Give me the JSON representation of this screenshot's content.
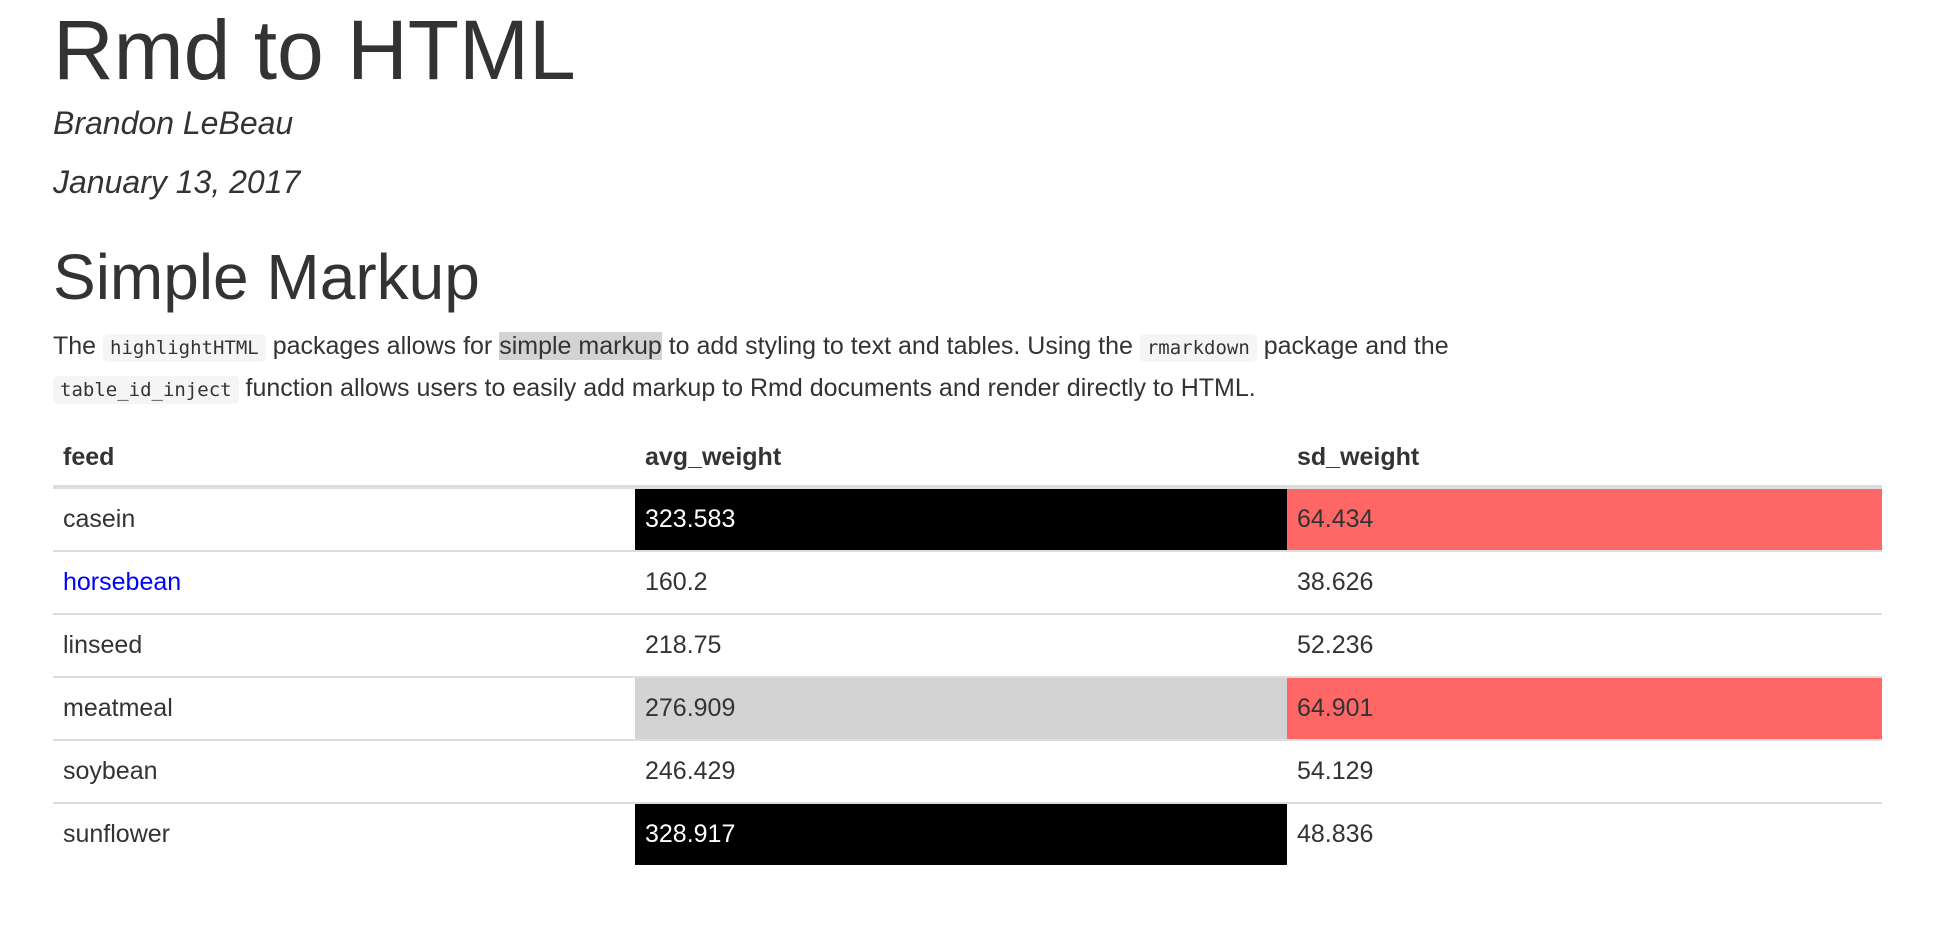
{
  "header": {
    "title": "Rmd to HTML",
    "author": "Brandon LeBeau",
    "date": "January 13, 2017"
  },
  "section": {
    "heading": "Simple Markup",
    "paragraph": {
      "t1": "The ",
      "code1": "highlightHTML",
      "t2": " packages allows for ",
      "highlight": "simple markup",
      "t3": " to add styling to text and tables. Using the ",
      "code2": "rmarkdown",
      "t4": " package and the ",
      "code3": "table_id_inject",
      "t5": " function allows users to easily add markup to Rmd documents and render directly to HTML."
    }
  },
  "colors": {
    "black_cell": "#000000",
    "red_cell": "#ff6666",
    "gray_cell": "#d3d3d3",
    "link": "#0000ff",
    "highlight": "#d3d3d3"
  },
  "table": {
    "columns": [
      "feed",
      "avg_weight",
      "sd_weight"
    ],
    "rows": [
      {
        "feed": "casein",
        "avg_weight": "323.583",
        "sd_weight": "64.434"
      },
      {
        "feed": "horsebean",
        "avg_weight": "160.2",
        "sd_weight": "38.626"
      },
      {
        "feed": "linseed",
        "avg_weight": "218.75",
        "sd_weight": "52.236"
      },
      {
        "feed": "meatmeal",
        "avg_weight": "276.909",
        "sd_weight": "64.901"
      },
      {
        "feed": "soybean",
        "avg_weight": "246.429",
        "sd_weight": "54.129"
      },
      {
        "feed": "sunflower",
        "avg_weight": "328.917",
        "sd_weight": "48.836"
      }
    ]
  }
}
